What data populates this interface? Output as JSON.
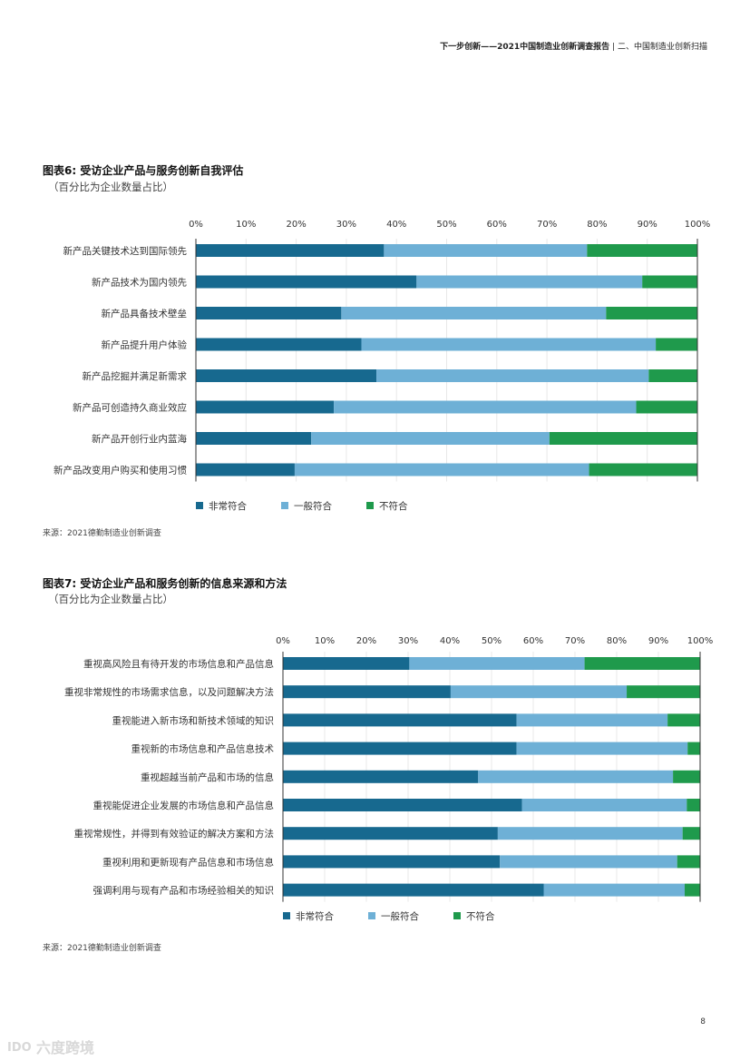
{
  "header": {
    "title_bold": "下一步创新——2021中国制造业创新调查报告",
    "separator": "|",
    "section": "二、中国制造业创新扫描"
  },
  "figure6": {
    "title": "图表6: 受访企业产品与服务创新自我评估",
    "subtitle": "（百分比为企业数量占比）",
    "source": "来源：2021德勤制造业创新调查"
  },
  "figure7": {
    "title": "图表7:  受访企业产品和服务创新的信息来源和方法",
    "subtitle": "（百分比为企业数量占比）",
    "source": "来源：2021德勤制造业创新调查"
  },
  "page_number": "8",
  "watermark": {
    "text": "六度跨境",
    "logo_text": "IDO"
  },
  "colors": {
    "very": "#17698f",
    "general": "#6eb0d6",
    "not": "#1f9a4c",
    "axis": "#333333",
    "grid": "#e8e8e8"
  },
  "chart_data": [
    {
      "type": "bar",
      "orientation": "horizontal",
      "stacked": true,
      "title": "图表6: 受访企业产品与服务创新自我评估",
      "subtitle": "（百分比为企业数量占比）",
      "xlim": [
        0,
        100
      ],
      "x_ticks": [
        "0%",
        "10%",
        "20%",
        "30%",
        "40%",
        "50%",
        "60%",
        "70%",
        "80%",
        "90%",
        "100%"
      ],
      "legend_position": "bottom-left",
      "categories": [
        "新产品关键技术达到国际领先",
        "新产品技术为国内领先",
        "新产品具备技术壁垒",
        "新产品提升用户体验",
        "新产品挖掘并满足新需求",
        "新产品可创造持久商业效应",
        "新产品开创行业内蓝海",
        "新产品改变用户购买和使用习惯"
      ],
      "series": [
        {
          "name": "非常符合",
          "color": "#17698f",
          "values": [
            37.5,
            44,
            29,
            33,
            36,
            27.5,
            23,
            19.7
          ]
        },
        {
          "name": "一般符合",
          "color": "#6eb0d6",
          "values": [
            40.5,
            45,
            52.8,
            58.7,
            54.3,
            60.3,
            47.5,
            58.7
          ]
        },
        {
          "name": "不符合",
          "color": "#1f9a4c",
          "values": [
            22,
            11,
            18.2,
            8.3,
            9.7,
            12.2,
            29.5,
            21.6
          ]
        }
      ]
    },
    {
      "type": "bar",
      "orientation": "horizontal",
      "stacked": true,
      "title": "图表7:  受访企业产品和服务创新的信息来源和方法",
      "subtitle": "（百分比为企业数量占比）",
      "xlim": [
        0,
        100
      ],
      "x_ticks": [
        "0%",
        "10%",
        "20%",
        "30%",
        "40%",
        "50%",
        "60%",
        "70%",
        "80%",
        "90%",
        "100%"
      ],
      "legend_position": "bottom-left",
      "categories": [
        "重视高风险且有待开发的市场信息和产品信息",
        "重视非常规性的市场需求信息，以及问题解决方法",
        "重视能进入新市场和新技术领域的知识",
        "重视新的市场信息和产品信息技术",
        "重视超越当前产品和市场的信息",
        "重视能促进企业发展的市场信息和产品信息",
        "重视常规性，并得到有效验证的解决方案和方法",
        "重视利用和更新现有产品信息和市场信息",
        "强调利用与现有产品和市场经验相关的知识"
      ],
      "series": [
        {
          "name": "非常符合",
          "color": "#17698f",
          "values": [
            30.3,
            40.2,
            56,
            56,
            46.8,
            57.3,
            51.5,
            52,
            62.5
          ]
        },
        {
          "name": "一般符合",
          "color": "#6eb0d6",
          "values": [
            42,
            42.2,
            36.2,
            41,
            46.7,
            39.5,
            44.3,
            42.5,
            33.8
          ]
        },
        {
          "name": "不符合",
          "color": "#1f9a4c",
          "values": [
            27.7,
            17.6,
            7.8,
            3,
            6.5,
            3.2,
            4.2,
            5.5,
            3.7
          ]
        }
      ]
    }
  ]
}
